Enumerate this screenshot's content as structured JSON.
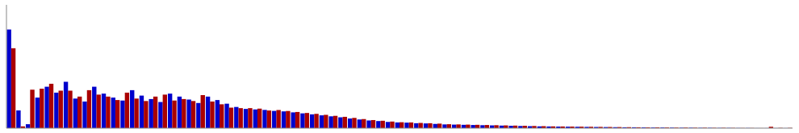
{
  "chart_data": {
    "type": "bar",
    "categories": [
      null,
      null,
      null,
      null,
      null,
      null,
      null,
      null,
      null,
      null,
      null,
      null,
      null,
      null,
      null,
      null,
      null,
      null,
      null,
      null,
      null,
      null,
      null,
      null,
      null,
      null,
      null,
      null,
      null,
      null,
      null,
      null,
      null,
      null,
      null,
      null,
      null,
      null,
      null,
      null,
      null,
      null,
      null,
      null,
      null,
      null,
      null,
      null,
      null,
      null,
      null,
      null,
      null,
      null,
      null,
      null,
      null,
      null,
      null,
      null,
      null,
      null,
      null,
      null,
      null,
      null,
      null,
      null,
      null,
      null,
      null,
      null,
      null,
      null,
      null,
      null,
      null,
      null,
      null,
      null,
      null,
      null,
      null
    ],
    "series": [
      {
        "color": "#0000cc",
        "values": [
          1.0,
          0.18,
          0.04,
          0.31,
          0.42,
          0.36,
          0.47,
          0.3,
          0.27,
          0.42,
          0.35,
          0.31,
          0.28,
          0.385,
          0.33,
          0.295,
          0.265,
          0.35,
          0.32,
          0.29,
          0.255,
          0.32,
          0.285,
          0.248,
          0.215,
          0.195,
          0.19,
          0.185,
          0.175,
          0.17,
          0.16,
          0.15,
          0.14,
          0.13,
          0.12,
          0.11,
          0.098,
          0.088,
          0.078,
          0.072,
          0.063,
          0.058,
          0.056,
          0.05,
          0.048,
          0.043,
          0.038,
          0.036,
          0.034,
          0.032,
          0.03,
          0.028,
          0.026,
          0.024,
          0.022,
          0.02,
          0.018,
          0.017,
          0.016,
          0.015,
          0.014,
          0.013,
          0.012,
          0.011,
          0.01,
          0.009,
          0.009,
          0.008,
          0.007,
          0.007,
          0.006,
          0.005,
          0.005,
          0.004,
          0.004,
          0.003,
          0.003,
          0.002,
          0.002,
          0.001,
          0.001,
          0.001,
          0.001
        ]
      },
      {
        "color": "#aa0000",
        "values": [
          0.81,
          0.018,
          0.39,
          0.4,
          0.45,
          0.38,
          0.38,
          0.32,
          0.385,
          0.34,
          0.32,
          0.285,
          0.36,
          0.3,
          0.275,
          0.32,
          0.34,
          0.28,
          0.295,
          0.275,
          0.335,
          0.27,
          0.242,
          0.208,
          0.203,
          0.203,
          0.198,
          0.179,
          0.184,
          0.174,
          0.164,
          0.154,
          0.145,
          0.135,
          0.125,
          0.115,
          0.104,
          0.092,
          0.082,
          0.075,
          0.067,
          0.06,
          0.058,
          0.053,
          0.05,
          0.046,
          0.04,
          0.038,
          0.036,
          0.034,
          0.032,
          0.03,
          0.028,
          0.026,
          0.024,
          0.022,
          0.02,
          0.018,
          0.017,
          0.016,
          0.015,
          0.014,
          0.013,
          0.012,
          0.011,
          0.01,
          0.009,
          0.008,
          0.008,
          0.007,
          0.006,
          0.006,
          0.005,
          0.005,
          0.004,
          0.004,
          0.003,
          0.002,
          0.002,
          0.001,
          0.014,
          0.003,
          0.003
        ]
      }
    ],
    "ylim": [
      0,
      1.25
    ],
    "tick_labels": false
  }
}
